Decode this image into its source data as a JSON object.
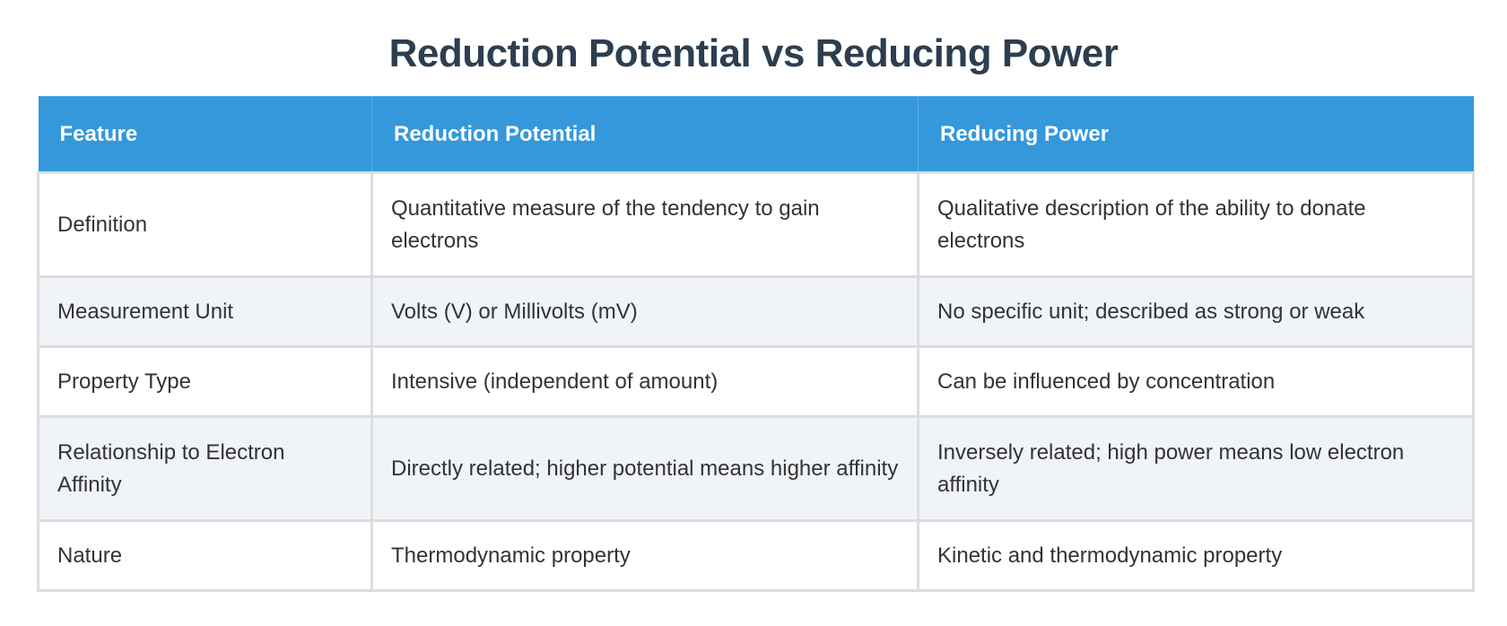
{
  "page": {
    "title": "Reduction Potential vs Reducing Power"
  },
  "colors": {
    "title": "#2c3e50",
    "header_bg": "#3498db",
    "header_text": "#ffffff",
    "row_alt_bg": "#f0f4f9",
    "border": "#dddddd",
    "body_text": "#333333"
  },
  "table": {
    "headers": [
      "Feature",
      "Reduction Potential",
      "Reducing Power"
    ],
    "rows": [
      {
        "feature": "Definition",
        "reduction_potential": "Quantitative measure of the tendency to gain electrons",
        "reducing_power": "Qualitative description of the ability to donate electrons"
      },
      {
        "feature": "Measurement Unit",
        "reduction_potential": "Volts (V) or Millivolts (mV)",
        "reducing_power": "No specific unit; described as strong or weak"
      },
      {
        "feature": "Property Type",
        "reduction_potential": "Intensive (independent of amount)",
        "reducing_power": "Can be influenced by concentration"
      },
      {
        "feature": "Relationship to Electron Affinity",
        "reduction_potential": "Directly related; higher potential means higher affinity",
        "reducing_power": "Inversely related; high power means low electron affinity"
      },
      {
        "feature": "Nature",
        "reduction_potential": "Thermodynamic property",
        "reducing_power": "Kinetic and thermodynamic property"
      }
    ]
  }
}
